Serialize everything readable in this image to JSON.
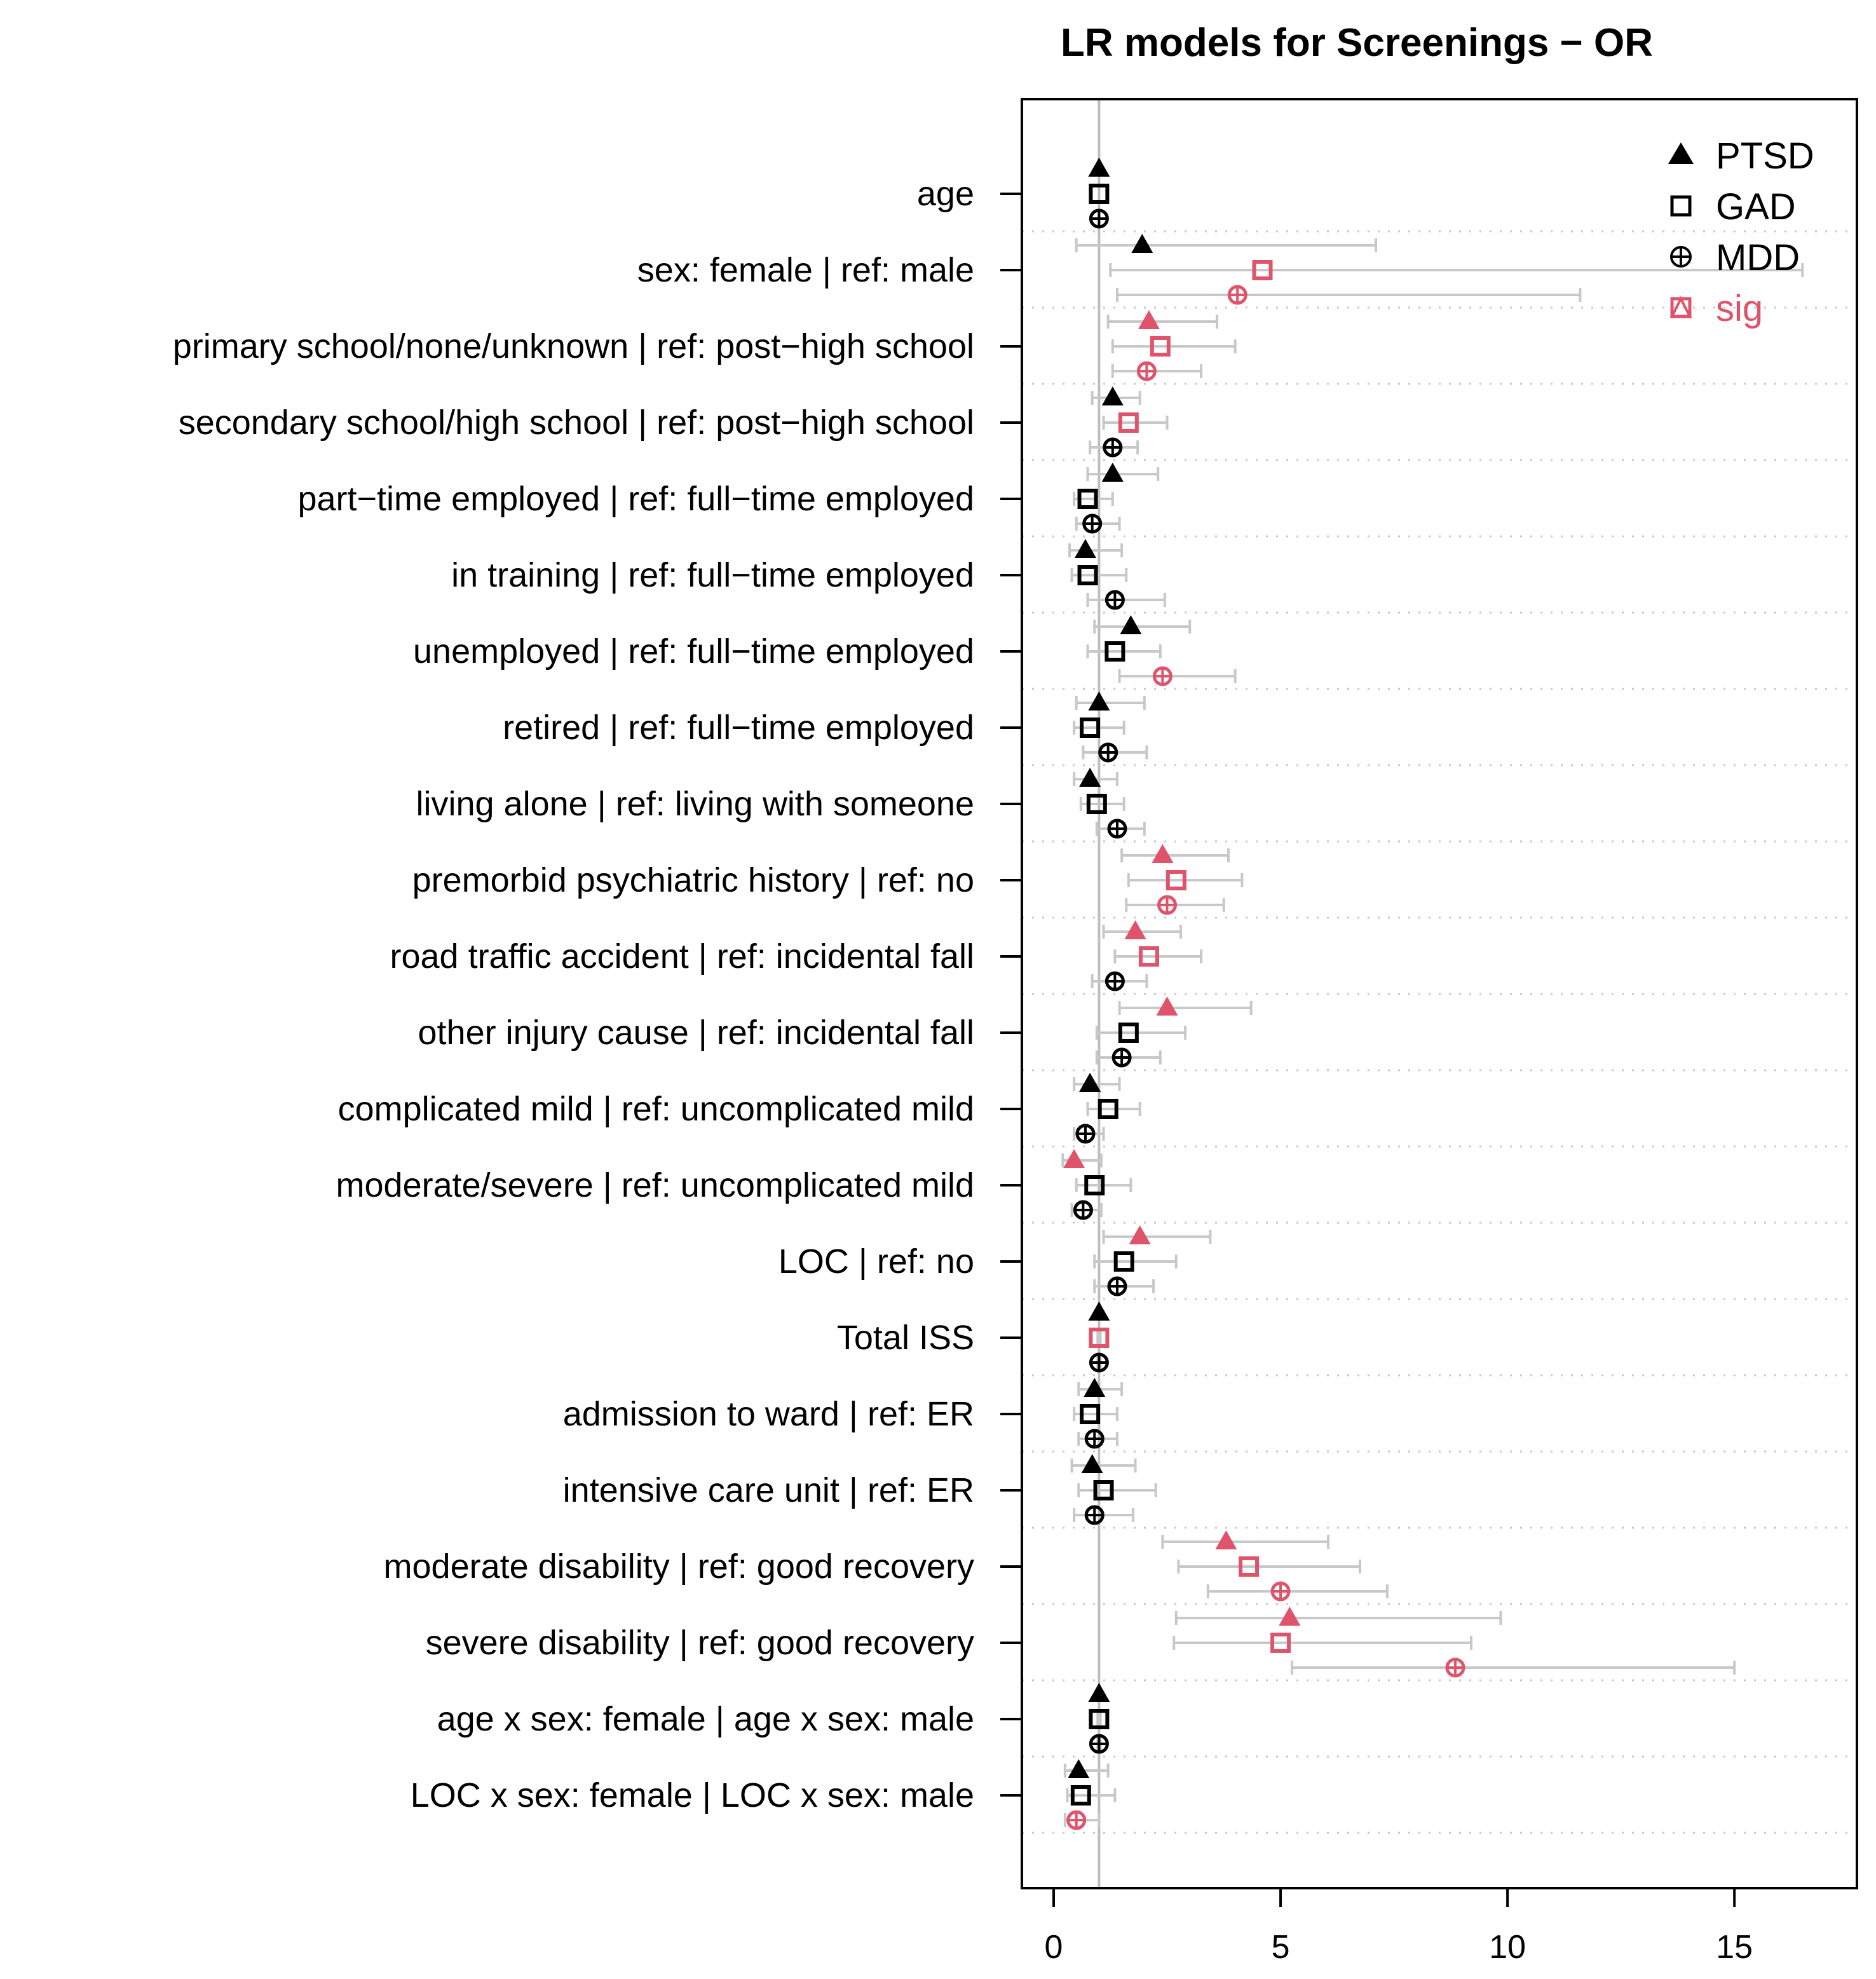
{
  "chart_data": {
    "type": "scatter",
    "title": "LR models for Screenings − OR",
    "xlabel": "",
    "ylabel": "",
    "xlim": [
      -0.7,
      17.7
    ],
    "x_ticks": [
      "0",
      "5",
      "10",
      "15"
    ],
    "x_tick_values": [
      0,
      5,
      10,
      15
    ],
    "reference_line": 1,
    "colors": {
      "default": "#000000",
      "sig": "#DF536B",
      "ci": "#c8c8c8",
      "ref": "#bebebe"
    },
    "legend": [
      {
        "label": "PTSD",
        "marker": "triangle",
        "color": "#000000"
      },
      {
        "label": "GAD",
        "marker": "square",
        "color": "#000000"
      },
      {
        "label": "MDD",
        "marker": "circle-plus",
        "color": "#000000"
      },
      {
        "label": "sig",
        "marker": "square-triangle",
        "color": "#DF536B"
      }
    ],
    "series_names": [
      "PTSD",
      "GAD",
      "MDD"
    ],
    "categories": [
      "age",
      "sex: female | ref: male",
      "primary school/none/unknown | ref: post−high school",
      "secondary school/high school | ref: post−high school",
      "part−time employed | ref: full−time employed",
      "in training | ref: full−time employed",
      "unemployed | ref: full−time employed",
      "retired | ref: full−time employed",
      "living alone | ref: living with someone",
      "premorbid psychiatric history | ref: no",
      "road traffic accident | ref: incidental fall",
      "other injury cause | ref: incidental fall",
      "complicated mild | ref: uncomplicated mild",
      "moderate/severe | ref: uncomplicated mild",
      "LOC | ref: no",
      "Total ISS",
      "admission to ward | ref: ER",
      "intensive care unit | ref: ER",
      "moderate disability | ref: good recovery",
      "severe disability | ref: good recovery",
      "age x sex: female | age x sex: male",
      "LOC x sex: female | LOC x sex: male"
    ],
    "points": [
      [
        [
          1.0,
          0.98,
          1.02,
          false
        ],
        [
          1.0,
          0.98,
          1.02,
          false
        ],
        [
          1.0,
          0.98,
          1.02,
          false
        ]
      ],
      [
        [
          1.95,
          0.5,
          7.1,
          false
        ],
        [
          4.6,
          1.25,
          16.5,
          true
        ],
        [
          4.05,
          1.4,
          11.6,
          true
        ]
      ],
      [
        [
          2.1,
          1.2,
          3.6,
          true
        ],
        [
          2.35,
          1.3,
          4.0,
          true
        ],
        [
          2.05,
          1.3,
          3.25,
          true
        ]
      ],
      [
        [
          1.3,
          0.85,
          1.9,
          false
        ],
        [
          1.65,
          1.1,
          2.5,
          true
        ],
        [
          1.3,
          0.8,
          1.85,
          false
        ]
      ],
      [
        [
          1.3,
          0.75,
          2.3,
          false
        ],
        [
          0.75,
          0.45,
          1.3,
          false
        ],
        [
          0.85,
          0.5,
          1.45,
          false
        ]
      ],
      [
        [
          0.7,
          0.35,
          1.5,
          false
        ],
        [
          0.75,
          0.4,
          1.6,
          false
        ],
        [
          1.35,
          0.75,
          2.45,
          false
        ]
      ],
      [
        [
          1.7,
          0.9,
          3.0,
          false
        ],
        [
          1.35,
          0.75,
          2.35,
          false
        ],
        [
          2.4,
          1.45,
          4.0,
          true
        ]
      ],
      [
        [
          1.0,
          0.5,
          2.0,
          false
        ],
        [
          0.8,
          0.45,
          1.55,
          false
        ],
        [
          1.2,
          0.65,
          2.05,
          false
        ]
      ],
      [
        [
          0.8,
          0.45,
          1.4,
          false
        ],
        [
          0.95,
          0.6,
          1.55,
          false
        ],
        [
          1.4,
          0.95,
          2.0,
          false
        ]
      ],
      [
        [
          2.4,
          1.5,
          3.85,
          true
        ],
        [
          2.7,
          1.65,
          4.15,
          true
        ],
        [
          2.5,
          1.6,
          3.75,
          true
        ]
      ],
      [
        [
          1.8,
          1.1,
          2.8,
          true
        ],
        [
          2.1,
          1.35,
          3.25,
          true
        ],
        [
          1.35,
          0.85,
          2.05,
          false
        ]
      ],
      [
        [
          2.5,
          1.45,
          4.35,
          true
        ],
        [
          1.65,
          0.95,
          2.9,
          false
        ],
        [
          1.5,
          0.95,
          2.35,
          false
        ]
      ],
      [
        [
          0.8,
          0.45,
          1.45,
          false
        ],
        [
          1.2,
          0.75,
          1.9,
          false
        ],
        [
          0.7,
          0.45,
          1.1,
          false
        ]
      ],
      [
        [
          0.45,
          0.2,
          1.05,
          true
        ],
        [
          0.9,
          0.5,
          1.7,
          false
        ],
        [
          0.65,
          0.4,
          1.05,
          false
        ]
      ],
      [
        [
          1.9,
          1.1,
          3.45,
          true
        ],
        [
          1.55,
          0.9,
          2.7,
          false
        ],
        [
          1.4,
          0.9,
          2.2,
          false
        ]
      ],
      [
        [
          1.0,
          0.97,
          1.03,
          false
        ],
        [
          1.0,
          0.97,
          1.03,
          true
        ],
        [
          1.0,
          0.97,
          1.03,
          false
        ]
      ],
      [
        [
          0.9,
          0.55,
          1.5,
          false
        ],
        [
          0.8,
          0.45,
          1.4,
          false
        ],
        [
          0.9,
          0.55,
          1.4,
          false
        ]
      ],
      [
        [
          0.85,
          0.4,
          1.8,
          false
        ],
        [
          1.1,
          0.55,
          2.25,
          false
        ],
        [
          0.9,
          0.45,
          1.75,
          false
        ]
      ],
      [
        [
          3.8,
          2.4,
          6.05,
          true
        ],
        [
          4.3,
          2.75,
          6.75,
          true
        ],
        [
          5.0,
          3.4,
          7.35,
          true
        ]
      ],
      [
        [
          5.2,
          2.7,
          9.85,
          true
        ],
        [
          5.0,
          2.65,
          9.2,
          true
        ],
        [
          8.85,
          5.25,
          15.0,
          true
        ]
      ],
      [
        [
          1.0,
          0.97,
          1.03,
          false
        ],
        [
          1.0,
          0.97,
          1.03,
          false
        ],
        [
          1.0,
          0.97,
          1.03,
          false
        ]
      ],
      [
        [
          0.55,
          0.25,
          1.2,
          false
        ],
        [
          0.6,
          0.3,
          1.35,
          false
        ],
        [
          0.5,
          0.25,
          1.0,
          true
        ]
      ]
    ]
  }
}
